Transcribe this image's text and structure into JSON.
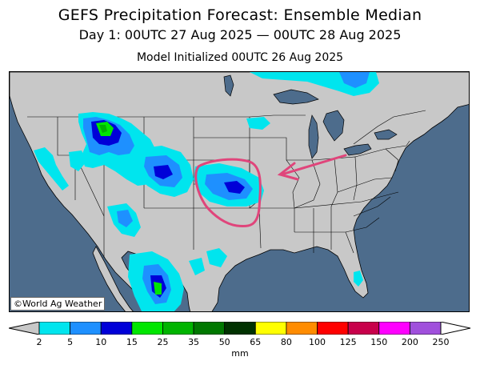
{
  "title": "GEFS Precipitation Forecast: Ensemble Median",
  "subtitle": "Day 1: 00UTC 27 Aug 2025 — 00UTC 28 Aug 2025",
  "init": "Model Initialized 00UTC 26 Aug 2025",
  "credit": "©World Ag Weather",
  "colors": {
    "ocean": "#4d6c8c",
    "land": "#c8c8c8",
    "boundary": "#000000",
    "annotation": "#e0457b"
  },
  "legend": {
    "unit": "mm",
    "ticks": [
      "2",
      "5",
      "10",
      "15",
      "25",
      "35",
      "50",
      "65",
      "80",
      "100",
      "125",
      "150",
      "200",
      "250"
    ],
    "colors": [
      "#00e5ee",
      "#1e90ff",
      "#0000d8",
      "#00e600",
      "#00b400",
      "#007800",
      "#003200",
      "#ffff00",
      "#ff8c00",
      "#ff0000",
      "#c8004b",
      "#ff00ff",
      "#a050dc"
    ],
    "below_color": "#c8c8c8",
    "above_color": "#ffffff"
  },
  "annotation": {
    "shape": "hand-drawn-circle",
    "arrow": "pointing-left",
    "highlight_region": "Kansas"
  }
}
